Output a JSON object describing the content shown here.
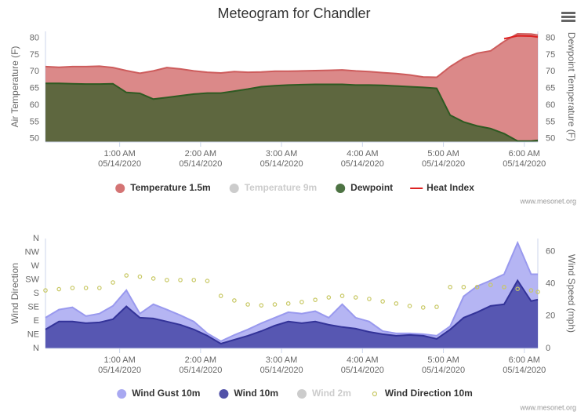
{
  "chart_data": [
    {
      "type": "area",
      "title": "Meteogram for Chandler",
      "y_label": "Air Temperature (F)",
      "y2_label": "Dewpoint Temperature (F)",
      "x": [
        "00:05",
        "00:15",
        "00:25",
        "00:35",
        "00:45",
        "00:55",
        "01:05",
        "01:15",
        "01:25",
        "01:35",
        "01:45",
        "01:55",
        "02:05",
        "02:15",
        "02:25",
        "02:35",
        "02:45",
        "02:55",
        "03:05",
        "03:15",
        "03:25",
        "03:35",
        "03:45",
        "03:55",
        "04:05",
        "04:15",
        "04:25",
        "04:35",
        "04:45",
        "04:55",
        "05:05",
        "05:15",
        "05:25",
        "05:35",
        "05:45",
        "05:55",
        "06:05",
        "06:10"
      ],
      "xlim": [
        "00:05",
        "06:10"
      ],
      "xticks": [
        {
          "value": "01:00",
          "label": "1:00 AM\n05/14/2020"
        },
        {
          "value": "02:00",
          "label": "2:00 AM\n05/14/2020"
        },
        {
          "value": "03:00",
          "label": "3:00 AM\n05/14/2020"
        },
        {
          "value": "04:00",
          "label": "4:00 AM\n05/14/2020"
        },
        {
          "value": "05:00",
          "label": "5:00 AM\n05/14/2020"
        },
        {
          "value": "06:00",
          "label": "6:00 AM\n05/14/2020"
        }
      ],
      "ylim": [
        49,
        82
      ],
      "yticks": [
        50,
        55,
        60,
        65,
        70,
        75,
        80
      ],
      "y2lim": [
        49,
        82
      ],
      "y2ticks": [
        50,
        55,
        60,
        65,
        70,
        75,
        80
      ],
      "series": [
        {
          "name": "Temperature 1.5m",
          "color": "#cd5c5c",
          "values": [
            71.5,
            71.3,
            71.5,
            71.5,
            71.6,
            71.2,
            70.3,
            69.5,
            70.2,
            71.2,
            70.8,
            70.2,
            69.8,
            69.6,
            70.0,
            69.8,
            69.9,
            70.1,
            70.1,
            70.2,
            70.3,
            70.4,
            70.5,
            70.2,
            70.0,
            69.7,
            69.4,
            69.0,
            68.4,
            68.3,
            71.5,
            74.0,
            75.5,
            76.2,
            79.0,
            81.3,
            81.2,
            80.9
          ]
        },
        {
          "name": "Temperature 9m",
          "color": "#cccccc",
          "visible": false,
          "values": [
            null,
            null,
            null,
            null,
            null,
            null,
            null,
            null,
            null,
            null,
            null,
            null,
            null,
            null,
            null,
            null,
            null,
            null,
            null,
            null,
            null,
            null,
            null,
            null,
            null,
            null,
            null,
            null,
            null,
            null,
            null,
            null,
            null,
            null,
            null,
            null,
            null,
            null
          ]
        },
        {
          "name": "Dewpoint",
          "color": "#2e5a22",
          "axis": "y2",
          "values": [
            66.5,
            66.5,
            66.4,
            66.3,
            66.3,
            66.4,
            63.8,
            63.5,
            61.8,
            62.3,
            62.8,
            63.3,
            63.6,
            63.6,
            64.2,
            64.8,
            65.5,
            65.8,
            66.0,
            66.1,
            66.2,
            66.2,
            66.2,
            66.0,
            66.0,
            65.9,
            65.7,
            65.5,
            65.3,
            65.0,
            57.0,
            55.0,
            53.8,
            53.0,
            51.5,
            49.3,
            49.3,
            49.5
          ]
        },
        {
          "name": "Heat Index",
          "color": "#dd2222",
          "type": "line",
          "values": [
            null,
            null,
            null,
            null,
            null,
            null,
            null,
            null,
            null,
            null,
            null,
            null,
            null,
            null,
            null,
            null,
            null,
            null,
            null,
            null,
            null,
            null,
            null,
            null,
            null,
            null,
            null,
            null,
            null,
            null,
            null,
            null,
            null,
            null,
            79.8,
            80.7,
            80.6,
            80.3
          ]
        }
      ],
      "credit": "www.mesonet.org"
    },
    {
      "type": "area",
      "y_label": "Wind Direction",
      "y2_label": "Wind Speed (mph)",
      "x": [
        "00:05",
        "00:15",
        "00:25",
        "00:35",
        "00:45",
        "00:55",
        "01:05",
        "01:15",
        "01:25",
        "01:35",
        "01:45",
        "01:55",
        "02:05",
        "02:15",
        "02:25",
        "02:35",
        "02:45",
        "02:55",
        "03:05",
        "03:15",
        "03:25",
        "03:35",
        "03:45",
        "03:55",
        "04:05",
        "04:15",
        "04:25",
        "04:35",
        "04:45",
        "04:55",
        "05:05",
        "05:15",
        "05:25",
        "05:35",
        "05:45",
        "05:55",
        "06:05",
        "06:10"
      ],
      "xlim": [
        "00:05",
        "06:10"
      ],
      "xticks": [
        {
          "value": "01:00",
          "label": "1:00 AM\n05/14/2020"
        },
        {
          "value": "02:00",
          "label": "2:00 AM\n05/14/2020"
        },
        {
          "value": "03:00",
          "label": "3:00 AM\n05/14/2020"
        },
        {
          "value": "04:00",
          "label": "4:00 AM\n05/14/2020"
        },
        {
          "value": "05:00",
          "label": "5:00 AM\n05/14/2020"
        },
        {
          "value": "06:00",
          "label": "6:00 AM\n05/14/2020"
        }
      ],
      "ylim": [
        0,
        360
      ],
      "yticks": [
        {
          "value": 0,
          "label": "N"
        },
        {
          "value": 45,
          "label": "NE"
        },
        {
          "value": 90,
          "label": "E"
        },
        {
          "value": 135,
          "label": "SE"
        },
        {
          "value": 180,
          "label": "S"
        },
        {
          "value": 225,
          "label": "SW"
        },
        {
          "value": 270,
          "label": "W"
        },
        {
          "value": 315,
          "label": "NW"
        },
        {
          "value": 360,
          "label": "N"
        }
      ],
      "y2lim": [
        0,
        68
      ],
      "y2ticks": [
        0,
        20,
        40,
        60
      ],
      "series": [
        {
          "name": "Wind Gust 10m",
          "color": "#9999ee",
          "axis": "y2",
          "values": [
            19.0,
            24.0,
            25.4,
            20.0,
            21.5,
            26.3,
            36.0,
            21.5,
            27.3,
            24.0,
            20.5,
            16.6,
            9.3,
            4.4,
            8.3,
            11.7,
            15.6,
            19.0,
            22.4,
            21.5,
            23.0,
            19.0,
            27.3,
            19.0,
            16.6,
            10.7,
            9.3,
            9.3,
            8.8,
            7.8,
            13.7,
            32.2,
            38.5,
            42.0,
            45.9,
            65.4,
            45.9,
            45.9
          ]
        },
        {
          "name": "Wind 10m",
          "color": "#333399",
          "axis": "y2",
          "values": [
            11.7,
            16.6,
            16.6,
            15.6,
            16.1,
            18.0,
            26.0,
            19.0,
            18.5,
            16.6,
            14.6,
            11.7,
            7.8,
            2.9,
            5.4,
            7.8,
            10.7,
            14.1,
            16.6,
            15.6,
            16.6,
            14.6,
            13.2,
            12.2,
            10.2,
            8.8,
            7.8,
            8.3,
            7.8,
            5.9,
            11.7,
            19.0,
            22.4,
            26.3,
            27.3,
            42.0,
            29.3,
            30.2
          ]
        },
        {
          "name": "Wind 2m",
          "color": "#cccccc",
          "axis": "y2",
          "visible": false,
          "values": [
            null,
            null,
            null,
            null,
            null,
            null,
            null,
            null,
            null,
            null,
            null,
            null,
            null,
            null,
            null,
            null,
            null,
            null,
            null,
            null,
            null,
            null,
            null,
            null,
            null,
            null,
            null,
            null,
            null,
            null,
            null,
            null,
            null,
            null,
            null,
            null,
            null,
            null
          ]
        },
        {
          "name": "Wind Direction 10m",
          "color": "#c8c864",
          "type": "scatter",
          "values": [
            190,
            194,
            198,
            198,
            198,
            216,
            239,
            235,
            229,
            224,
            224,
            224,
            221,
            172,
            157,
            144,
            141,
            144,
            147,
            152,
            159,
            167,
            172,
            167,
            162,
            154,
            147,
            139,
            134,
            136,
            201,
            201,
            201,
            208,
            201,
            195,
            190,
            185
          ]
        }
      ],
      "credit": "www.mesonet.org"
    }
  ]
}
